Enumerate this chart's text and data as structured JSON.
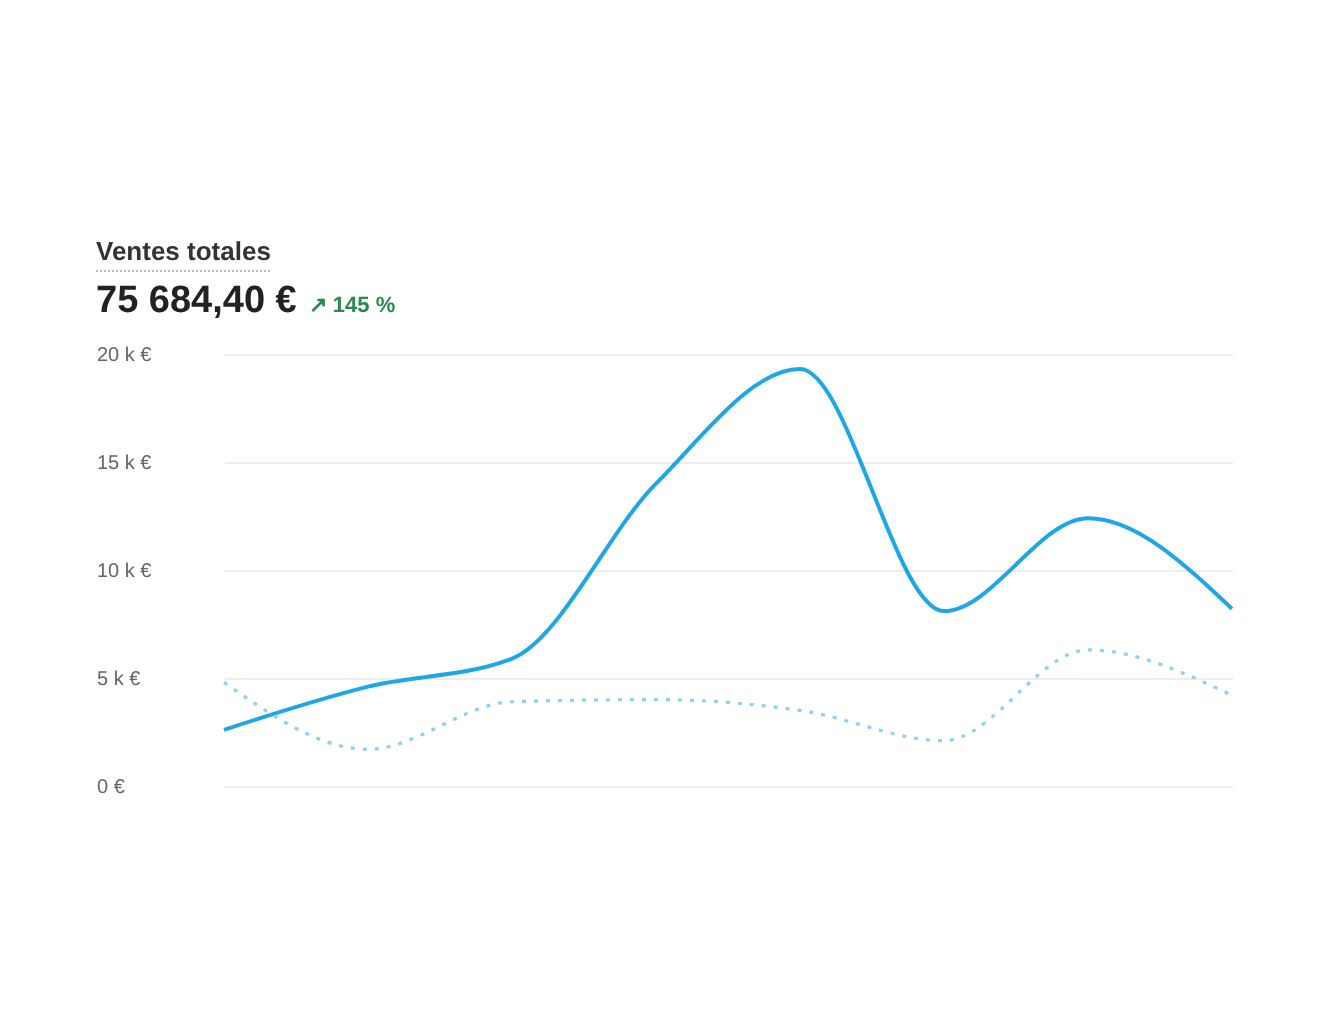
{
  "chart_data": {
    "type": "line",
    "title": "Ventes totales",
    "subtitle": "75 684,40 €",
    "annotations": [
      "↗ 145 %"
    ],
    "categories": [
      null,
      null,
      null,
      null,
      null,
      null,
      null,
      null
    ],
    "series": [
      {
        "color": "#1ea7e6",
        "line_style": "solid",
        "values": [
          2.6,
          4.6,
          5.9,
          14.0,
          19.3,
          8.1,
          12.4,
          8.2
        ]
      },
      {
        "color": "#8fd0f2",
        "line_style": "dotted",
        "values": [
          4.8,
          1.7,
          3.9,
          4.0,
          3.5,
          2.1,
          6.3,
          4.2
        ]
      }
    ],
    "ylim": [
      0,
      20
    ],
    "yticks": [
      {
        "value": 0,
        "label": "0 €"
      },
      {
        "value": 5,
        "label": "5 k €"
      },
      {
        "value": 10,
        "label": "10 k €"
      },
      {
        "value": 15,
        "label": "15 k €"
      },
      {
        "value": 20,
        "label": "20 k €"
      }
    ],
    "grid": "y",
    "tick_labels": "y",
    "marker": "none"
  }
}
